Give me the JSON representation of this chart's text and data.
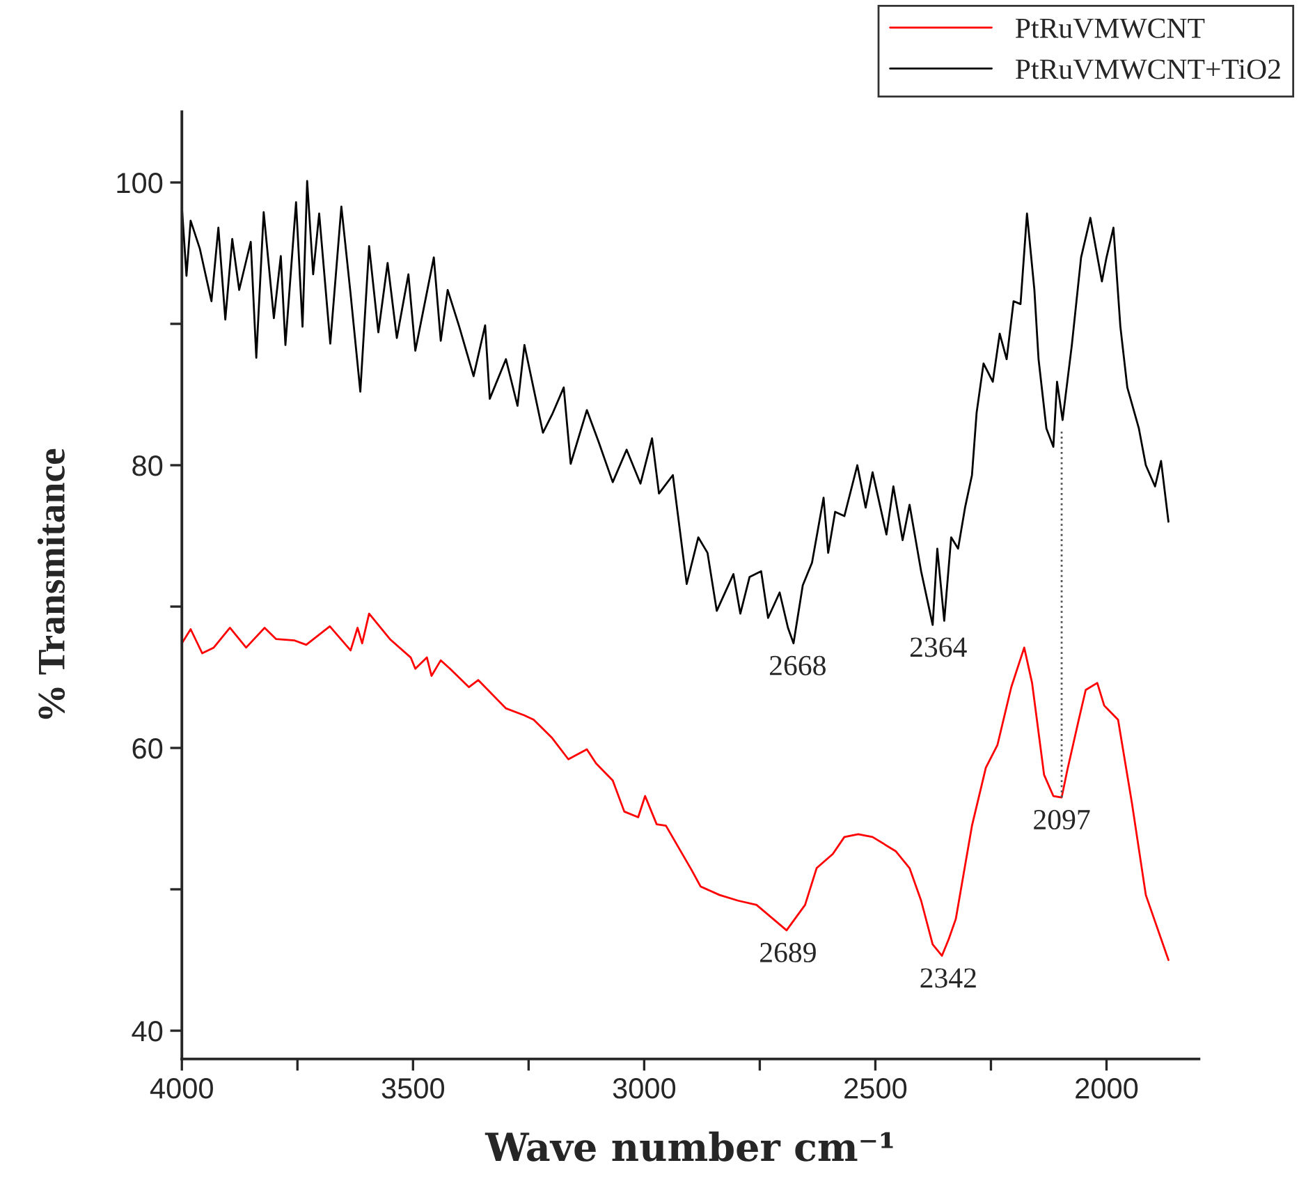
{
  "chart_data": {
    "type": "line",
    "xlabel": "Wave number cm⁻¹",
    "ylabel": "% Transmitance",
    "xlim": [
      4000,
      1800
    ],
    "ylim": [
      38,
      105
    ],
    "xticks": [
      4000,
      {
        "value": 3750,
        "label": null
      },
      3500,
      {
        "value": 3250,
        "label": null
      },
      3000,
      {
        "value": 2750,
        "label": null
      },
      2500,
      {
        "value": 2250,
        "label": null
      },
      2000
    ],
    "yticks": [
      40,
      {
        "value": 50,
        "label": null
      },
      60,
      {
        "value": 70,
        "label": null
      },
      80,
      {
        "value": 90,
        "label": null
      },
      100
    ],
    "grid": false,
    "legend": "top right",
    "marker": "none",
    "line_style": "solid",
    "series": [
      {
        "name": "PtRuVMWCNT",
        "color": "#ff0000",
        "x": [
          4000,
          3981,
          3956,
          3931,
          3896,
          3861,
          3821,
          3796,
          3756,
          3731,
          3680,
          3635,
          3620,
          3610,
          3595,
          3550,
          3505,
          3495,
          3470,
          3460,
          3440,
          3420,
          3379,
          3359,
          3299,
          3259,
          3239,
          3199,
          3164,
          3124,
          3104,
          3068,
          3043,
          3013,
          2998,
          2973,
          2953,
          2898,
          2878,
          2837,
          2797,
          2757,
          2692,
          2652,
          2627,
          2592,
          2567,
          2537,
          2506,
          2456,
          2426,
          2401,
          2376,
          2356,
          2341,
          2326,
          2291,
          2261,
          2236,
          2206,
          2178,
          2161,
          2135,
          2115,
          2097,
          2085,
          2060,
          2045,
          2020,
          2005,
          1975,
          1945,
          1915,
          1866
        ],
        "values": [
          67.4,
          68.4,
          66.7,
          67.1,
          68.5,
          67.1,
          68.5,
          67.7,
          67.6,
          67.3,
          68.6,
          66.9,
          68.5,
          67.4,
          69.5,
          67.7,
          66.4,
          65.6,
          66.4,
          65.1,
          66.2,
          65.6,
          64.3,
          64.8,
          62.8,
          62.3,
          62.0,
          60.7,
          59.2,
          59.9,
          58.9,
          57.7,
          55.5,
          55.1,
          56.6,
          54.6,
          54.5,
          51.4,
          50.2,
          49.6,
          49.2,
          48.9,
          47.1,
          48.9,
          51.5,
          52.5,
          53.7,
          53.9,
          53.7,
          52.7,
          51.5,
          49.2,
          46.1,
          45.3,
          46.5,
          47.9,
          54.5,
          58.6,
          60.2,
          64.3,
          67.1,
          64.6,
          58.1,
          56.6,
          56.5,
          58.4,
          62.0,
          64.1,
          64.6,
          63.0,
          62.0,
          56.1,
          49.6,
          45.0
        ]
      },
      {
        "name": "PtRuVMWCNT+TiO2",
        "color": "#000000",
        "x": [
          4000,
          3990,
          3981,
          3961,
          3936,
          3921,
          3906,
          3891,
          3876,
          3851,
          3839,
          3823,
          3801,
          3786,
          3776,
          3753,
          3739,
          3729,
          3716,
          3703,
          3679,
          3655,
          3635,
          3614,
          3595,
          3575,
          3555,
          3535,
          3510,
          3495,
          3455,
          3440,
          3425,
          3400,
          3369,
          3344,
          3334,
          3299,
          3274,
          3259,
          3219,
          3199,
          3174,
          3159,
          3124,
          3098,
          3068,
          3038,
          3008,
          2983,
          2968,
          2938,
          2908,
          2883,
          2863,
          2843,
          2807,
          2792,
          2772,
          2747,
          2732,
          2707,
          2689,
          2677,
          2657,
          2637,
          2612,
          2602,
          2587,
          2567,
          2539,
          2521,
          2506,
          2476,
          2461,
          2441,
          2426,
          2401,
          2376,
          2366,
          2351,
          2336,
          2321,
          2306,
          2291,
          2281,
          2266,
          2246,
          2231,
          2216,
          2201,
          2186,
          2172,
          2156,
          2147,
          2130,
          2115,
          2107,
          2095,
          2075,
          2055,
          2035,
          2010,
          2000,
          1985,
          1970,
          1955,
          1930,
          1915,
          1895,
          1882,
          1866
        ],
        "values": [
          98.3,
          93.4,
          97.3,
          95.3,
          91.6,
          96.8,
          90.3,
          96.0,
          92.4,
          95.8,
          87.6,
          97.9,
          90.4,
          94.8,
          88.5,
          98.6,
          89.8,
          100.1,
          93.5,
          97.8,
          88.6,
          98.3,
          92.1,
          85.2,
          95.5,
          89.4,
          94.3,
          89.0,
          93.5,
          88.1,
          94.7,
          88.8,
          92.4,
          89.8,
          86.3,
          89.9,
          84.7,
          87.5,
          84.2,
          88.5,
          82.3,
          83.6,
          85.5,
          80.1,
          83.9,
          81.6,
          78.8,
          81.1,
          78.7,
          81.9,
          78.0,
          79.3,
          71.6,
          74.9,
          73.8,
          69.7,
          72.3,
          69.5,
          72.1,
          72.5,
          69.2,
          71.0,
          68.5,
          67.4,
          71.5,
          73.1,
          77.7,
          73.8,
          76.7,
          76.4,
          80.0,
          77.0,
          79.5,
          75.1,
          78.5,
          74.7,
          77.2,
          72.5,
          68.7,
          74.1,
          69.0,
          74.9,
          74.1,
          77.0,
          79.3,
          83.7,
          87.2,
          85.9,
          89.3,
          87.5,
          91.6,
          91.4,
          97.8,
          92.4,
          87.5,
          82.6,
          81.3,
          85.9,
          83.2,
          88.5,
          94.7,
          97.5,
          93.0,
          94.7,
          96.8,
          89.8,
          85.5,
          82.6,
          80.0,
          78.5,
          80.3,
          76.0
        ]
      },
      {
        "type": "line",
        "line_style": "dotted",
        "color": "#555555",
        "x": [
          2097,
          2097
        ],
        "values": [
          56.5,
          82.5
        ]
      }
    ],
    "annotations": [
      {
        "text": "2668",
        "x": 2668,
        "y": 67.4
      },
      {
        "text": "2364",
        "x": 2364,
        "y": 68.7
      },
      {
        "text": "2689",
        "x": 2689,
        "y": 47.1
      },
      {
        "text": "2342",
        "x": 2342,
        "y": 45.3
      },
      {
        "text": "2097",
        "x": 2097,
        "y": 56.5
      }
    ]
  }
}
